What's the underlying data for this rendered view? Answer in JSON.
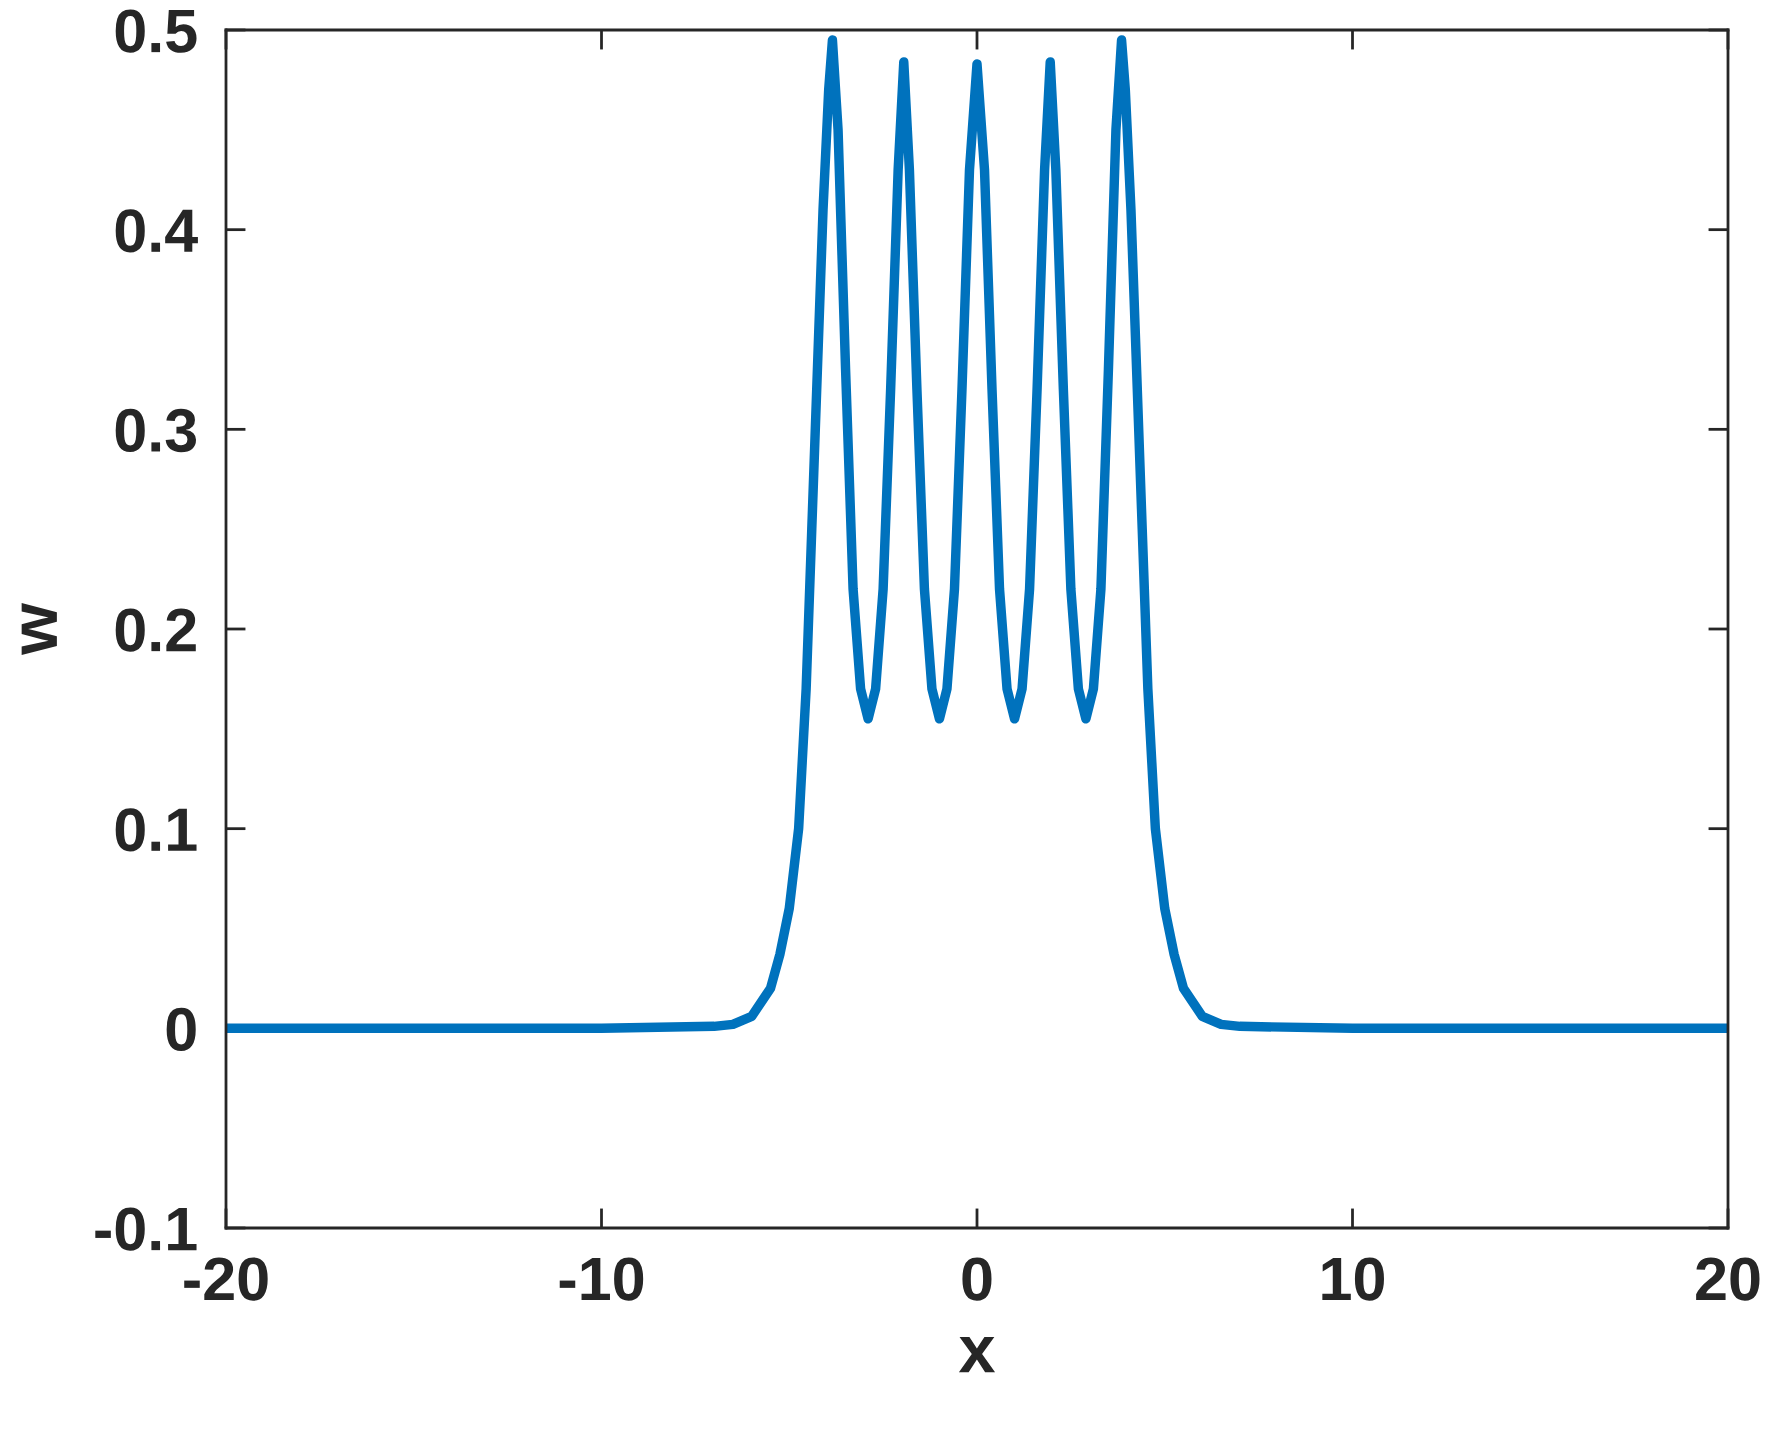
{
  "chart_data": {
    "type": "line",
    "xlabel": "x",
    "ylabel": "w",
    "xlim": [
      -20,
      20
    ],
    "xticks": [
      -20,
      -10,
      0,
      10,
      20
    ],
    "ylim": [
      -0.1,
      0.5
    ],
    "yticks": [
      -0.1,
      0,
      0.1,
      0.2,
      0.3,
      0.4,
      0.5
    ],
    "grid": false,
    "marker": "none",
    "line_style": "solid",
    "series": [
      {
        "color": "#0072bd",
        "x": [
          -20,
          -10,
          -7,
          -6.5,
          -6,
          -5.5,
          -5.25,
          -5,
          -4.75,
          -4.55,
          -4.4,
          -4.25,
          -4.1,
          -3.95,
          -3.85,
          -3.7,
          -3.5,
          -3.3,
          -3.1,
          -2.9,
          -2.7,
          -2.5,
          -2.3,
          -2.1,
          -1.95,
          -1.8,
          -1.6,
          -1.4,
          -1.2,
          -1.0,
          -0.8,
          -0.6,
          -0.4,
          -0.2,
          0,
          0.2,
          0.4,
          0.6,
          0.8,
          1.0,
          1.2,
          1.4,
          1.6,
          1.8,
          1.95,
          2.1,
          2.3,
          2.5,
          2.7,
          2.9,
          3.1,
          3.3,
          3.5,
          3.7,
          3.85,
          3.95,
          4.1,
          4.25,
          4.4,
          4.55,
          4.75,
          5,
          5.25,
          5.5,
          6,
          6.5,
          7,
          10,
          20
        ],
        "values": [
          0,
          0,
          0.001,
          0.002,
          0.006,
          0.02,
          0.037,
          0.06,
          0.1,
          0.17,
          0.25,
          0.33,
          0.41,
          0.47,
          0.495,
          0.45,
          0.33,
          0.22,
          0.17,
          0.155,
          0.17,
          0.22,
          0.32,
          0.43,
          0.484,
          0.43,
          0.32,
          0.22,
          0.17,
          0.155,
          0.17,
          0.22,
          0.32,
          0.43,
          0.483,
          0.43,
          0.32,
          0.22,
          0.17,
          0.155,
          0.17,
          0.22,
          0.32,
          0.43,
          0.484,
          0.43,
          0.32,
          0.22,
          0.17,
          0.155,
          0.17,
          0.22,
          0.33,
          0.45,
          0.495,
          0.47,
          0.41,
          0.33,
          0.25,
          0.17,
          0.1,
          0.06,
          0.037,
          0.02,
          0.006,
          0.002,
          0.001,
          0,
          0
        ]
      }
    ]
  }
}
